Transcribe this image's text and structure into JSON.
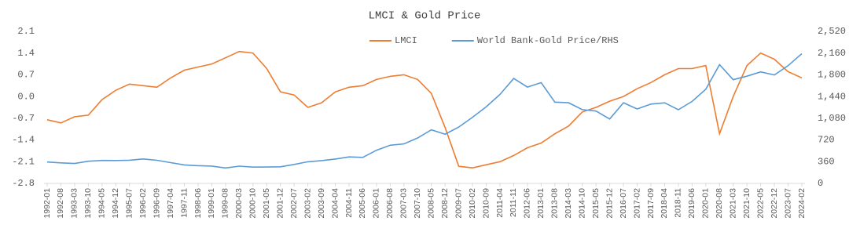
{
  "chart_data": {
    "type": "line",
    "title": "LMCI & Gold Price",
    "categories": [
      "1992-01",
      "1992-08",
      "1993-03",
      "1993-10",
      "1994-05",
      "1994-12",
      "1995-07",
      "1996-02",
      "1996-09",
      "1997-04",
      "1997-11",
      "1998-06",
      "1999-01",
      "1999-08",
      "2000-03",
      "2000-10",
      "2001-05",
      "2001-12",
      "2002-07",
      "2003-02",
      "2003-09",
      "2004-04",
      "2004-11",
      "2005-06",
      "2006-01",
      "2006-08",
      "2007-03",
      "2007-10",
      "2008-05",
      "2008-12",
      "2009-07",
      "2010-02",
      "2010-09",
      "2011-04",
      "2011-11",
      "2012-06",
      "2013-01",
      "2013-08",
      "2014-03",
      "2014-10",
      "2015-05",
      "2015-12",
      "2016-07",
      "2017-02",
      "2017-09",
      "2018-04",
      "2018-11",
      "2019-06",
      "2020-01",
      "2020-08",
      "2021-03",
      "2021-10",
      "2022-05",
      "2022-12",
      "2023-07",
      "2024-02"
    ],
    "series": [
      {
        "name": "LMCI",
        "color": "#ED7D31",
        "values": [
          -0.75,
          -0.85,
          -0.65,
          -0.6,
          -0.1,
          0.2,
          0.4,
          0.35,
          0.3,
          0.6,
          0.85,
          0.95,
          1.05,
          1.25,
          1.45,
          1.4,
          0.9,
          0.15,
          0.05,
          -0.35,
          -0.2,
          0.15,
          0.3,
          0.35,
          0.55,
          0.65,
          0.7,
          0.55,
          0.1,
          -1.0,
          -2.25,
          -2.3,
          -2.2,
          -2.1,
          -1.9,
          -1.65,
          -1.5,
          -1.2,
          -0.95,
          -0.5,
          -0.35,
          -0.15,
          0.0,
          0.25,
          0.45,
          0.7,
          0.9,
          0.9,
          1.0,
          -1.2,
          0.0,
          1.0,
          1.4,
          1.2,
          0.8,
          0.6
        ]
      },
      {
        "name": "World Bank-Gold Price/RHS",
        "color": "#5B9BD5",
        "axis": "y2",
        "values": [
          354,
          340,
          330,
          367,
          381,
          379,
          385,
          405,
          383,
          344,
          306,
          293,
          287,
          256,
          286,
          270,
          272,
          276,
          314,
          359,
          378,
          404,
          439,
          431,
          549,
          633,
          655,
          754,
          889,
          816,
          934,
          1096,
          1271,
          1474,
          1739,
          1597,
          1670,
          1347,
          1336,
          1222,
          1199,
          1068,
          1337,
          1234,
          1315,
          1335,
          1221,
          1359,
          1560,
          1968,
          1718,
          1777,
          1849,
          1797,
          1951,
          2150
        ]
      }
    ],
    "ylim": [
      -2.8,
      2.1
    ],
    "yticks": [
      -2.8,
      -2.1,
      -1.4,
      -0.7,
      {
        "value": 0,
        "label": "0.0"
      },
      0.7,
      1.4,
      2.1
    ],
    "y2lim": [
      0,
      2520
    ],
    "y2ticks": [
      0,
      360,
      720,
      {
        "value": 1080,
        "label": "1,080"
      },
      {
        "value": 1440,
        "label": "1,440"
      },
      {
        "value": 1800,
        "label": "1,800"
      },
      {
        "value": 2160,
        "label": "2,160"
      },
      {
        "value": 2520,
        "label": "2,520"
      }
    ],
    "grid": false
  }
}
